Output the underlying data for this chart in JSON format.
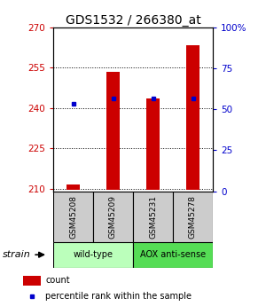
{
  "title": "GDS1532 / 266380_at",
  "samples": [
    "GSM45208",
    "GSM45209",
    "GSM45231",
    "GSM45278"
  ],
  "red_values": [
    211.5,
    253.5,
    243.5,
    263.5
  ],
  "blue_values": [
    241.5,
    243.5,
    243.5,
    243.5
  ],
  "ylim_left": [
    209,
    270
  ],
  "ylim_right": [
    0,
    100
  ],
  "yticks_left": [
    210,
    225,
    240,
    255,
    270
  ],
  "yticks_right": [
    0,
    25,
    50,
    75,
    100
  ],
  "ytick_labels_right": [
    "0",
    "25",
    "50",
    "75",
    "100%"
  ],
  "bar_bottom": 209.5,
  "bar_width": 0.35,
  "groups": [
    {
      "label": "wild-type",
      "indices": [
        0,
        1
      ],
      "color": "#bbffbb"
    },
    {
      "label": "AOX anti-sense",
      "indices": [
        2,
        3
      ],
      "color": "#55dd55"
    }
  ],
  "strain_label": "strain",
  "legend_red_label": "count",
  "legend_blue_label": "percentile rank within the sample",
  "red_color": "#cc0000",
  "blue_color": "#0000cc",
  "title_fontsize": 10,
  "tick_fontsize": 7.5,
  "sample_label_fontsize": 6.5,
  "group_label_fontsize": 7,
  "legend_fontsize": 7,
  "strain_fontsize": 8
}
